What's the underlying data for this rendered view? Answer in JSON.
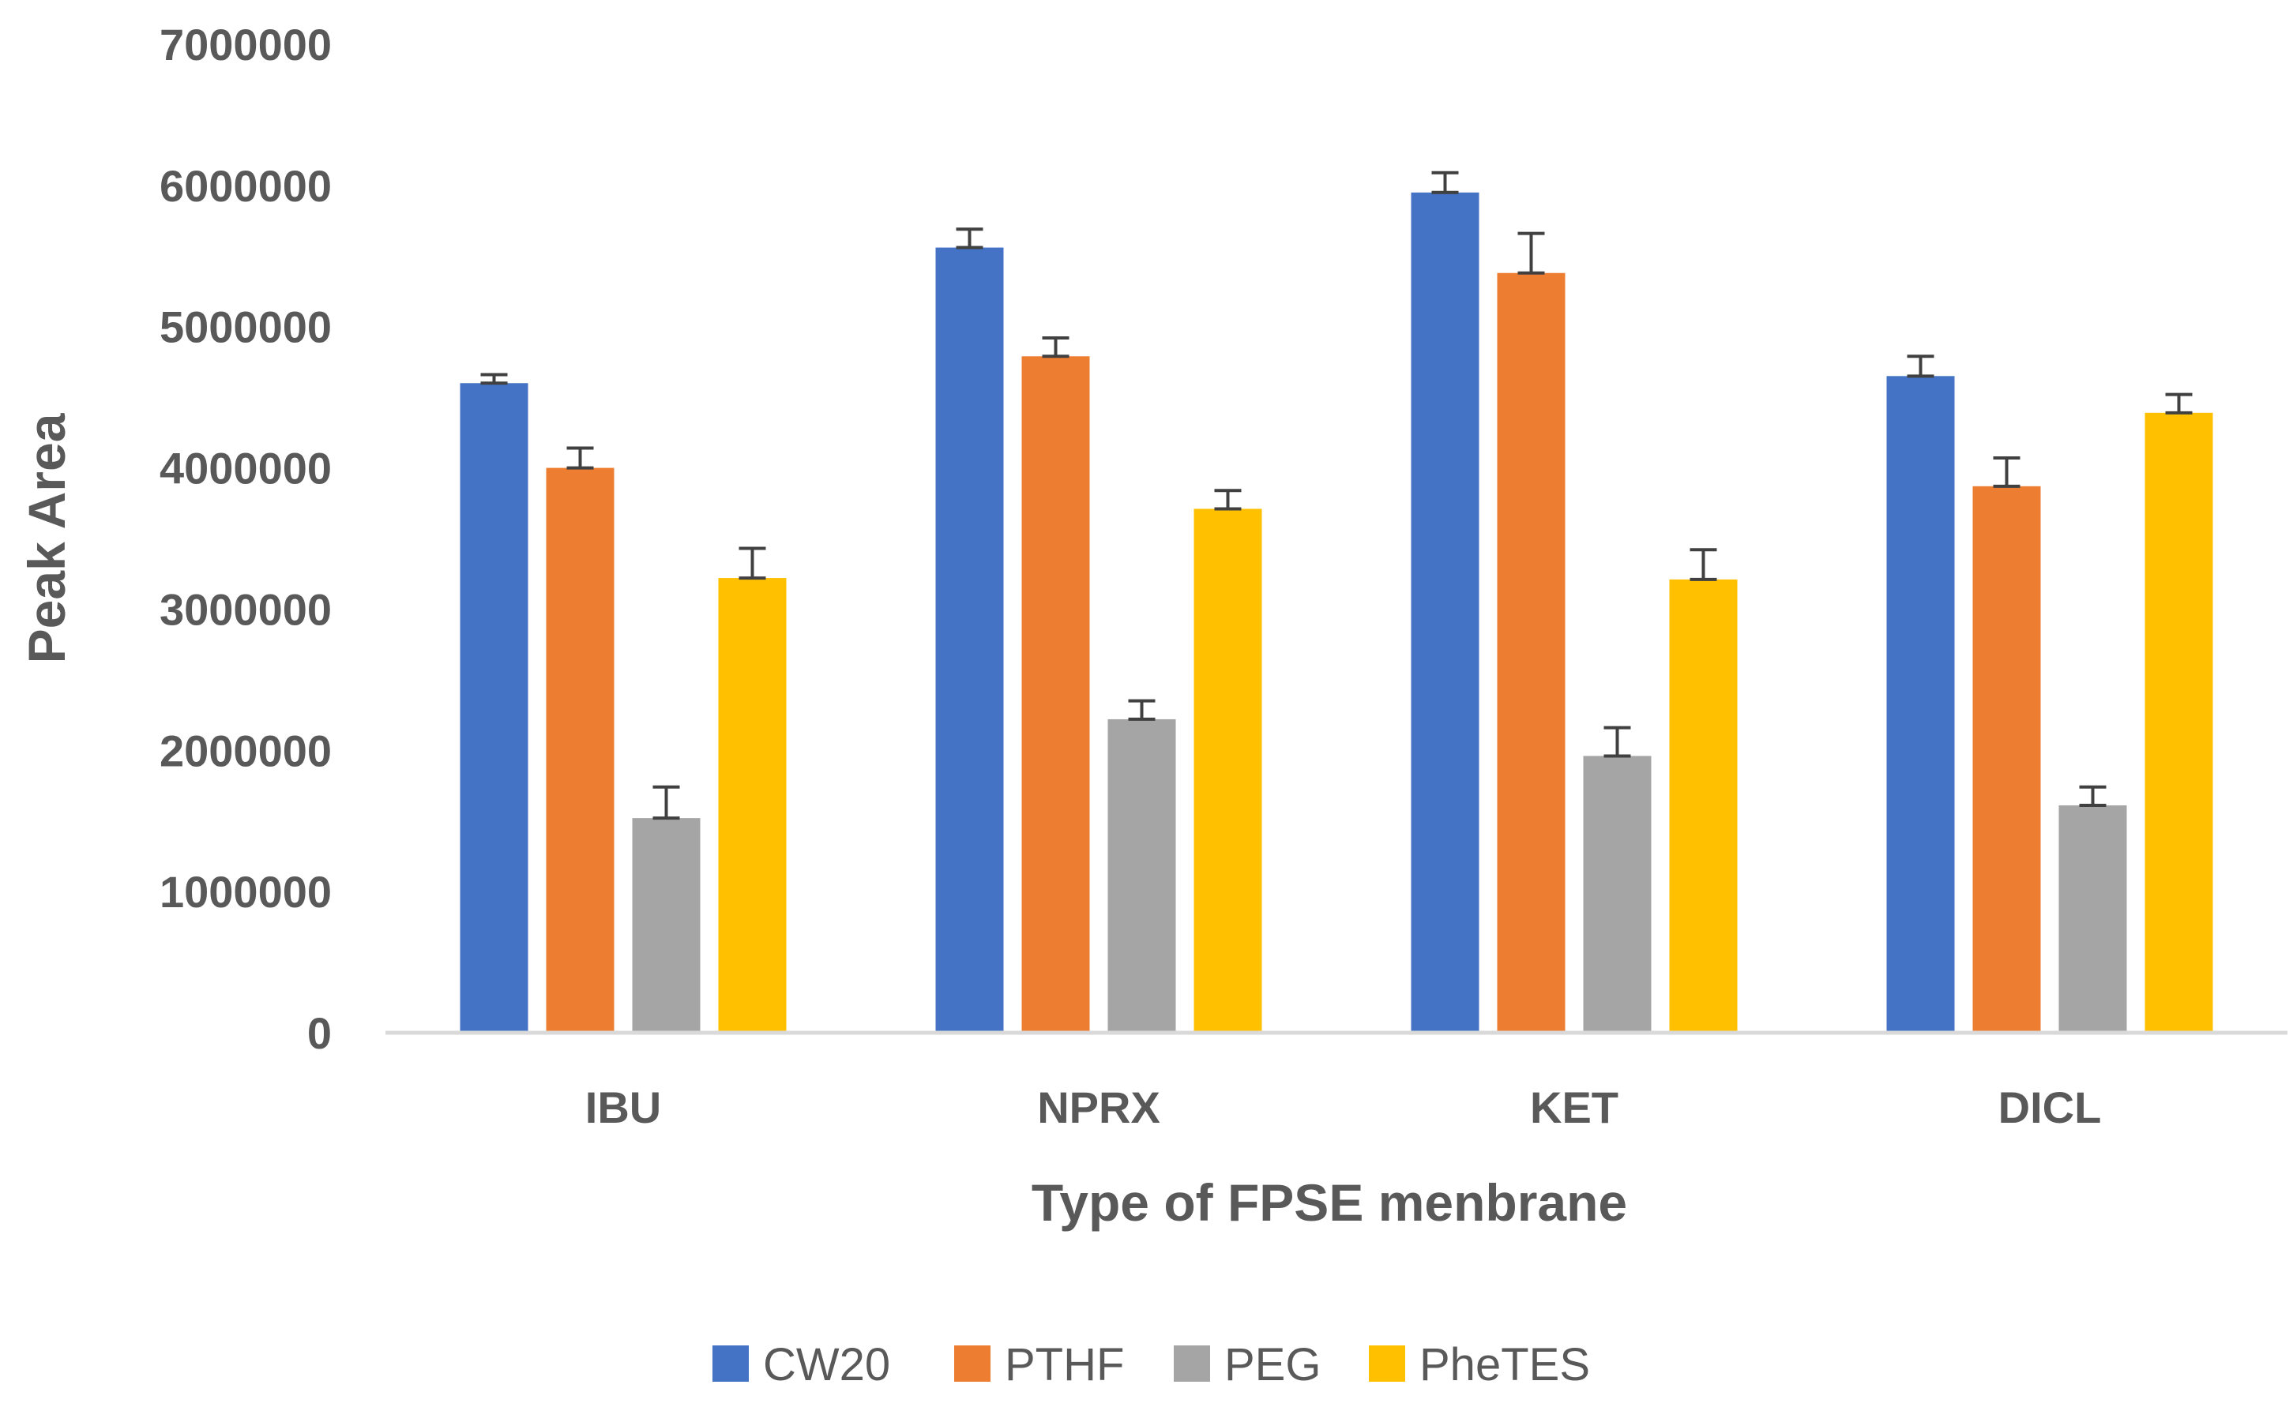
{
  "chart_data": {
    "type": "bar",
    "title": "",
    "xlabel": "Type of FPSE menbrane",
    "ylabel": "Peak Area",
    "ylim": [
      0,
      7000000
    ],
    "yticks": [
      0,
      1000000,
      2000000,
      3000000,
      4000000,
      5000000,
      6000000,
      7000000
    ],
    "ytick_labels": [
      "0",
      "1000000",
      "2000000",
      "3000000",
      "4000000",
      "5000000",
      "6000000",
      "7000000"
    ],
    "grid": false,
    "legend_position": "bottom",
    "error_bars": true,
    "categories": [
      "IBU",
      "NPRX",
      "KET",
      "DICL"
    ],
    "series": [
      {
        "name": "CW20",
        "color": "#4472C4",
        "values": [
          4600000,
          5560000,
          5950000,
          4650000
        ],
        "errors": [
          60000,
          130000,
          140000,
          140000
        ]
      },
      {
        "name": "PTHF",
        "color": "#ED7D31",
        "values": [
          4000000,
          4790000,
          5380000,
          3870000
        ],
        "errors": [
          140000,
          130000,
          280000,
          200000
        ]
      },
      {
        "name": "PEG",
        "color": "#A5A5A5",
        "values": [
          1520000,
          2220000,
          1960000,
          1610000
        ],
        "errors": [
          220000,
          130000,
          200000,
          130000
        ]
      },
      {
        "name": "PheTES",
        "color": "#FFC000",
        "values": [
          3220000,
          3710000,
          3210000,
          4390000
        ],
        "errors": [
          210000,
          130000,
          210000,
          130000
        ]
      }
    ],
    "axis_color": "#D9D9D9",
    "error_bar_color": "#404040"
  }
}
